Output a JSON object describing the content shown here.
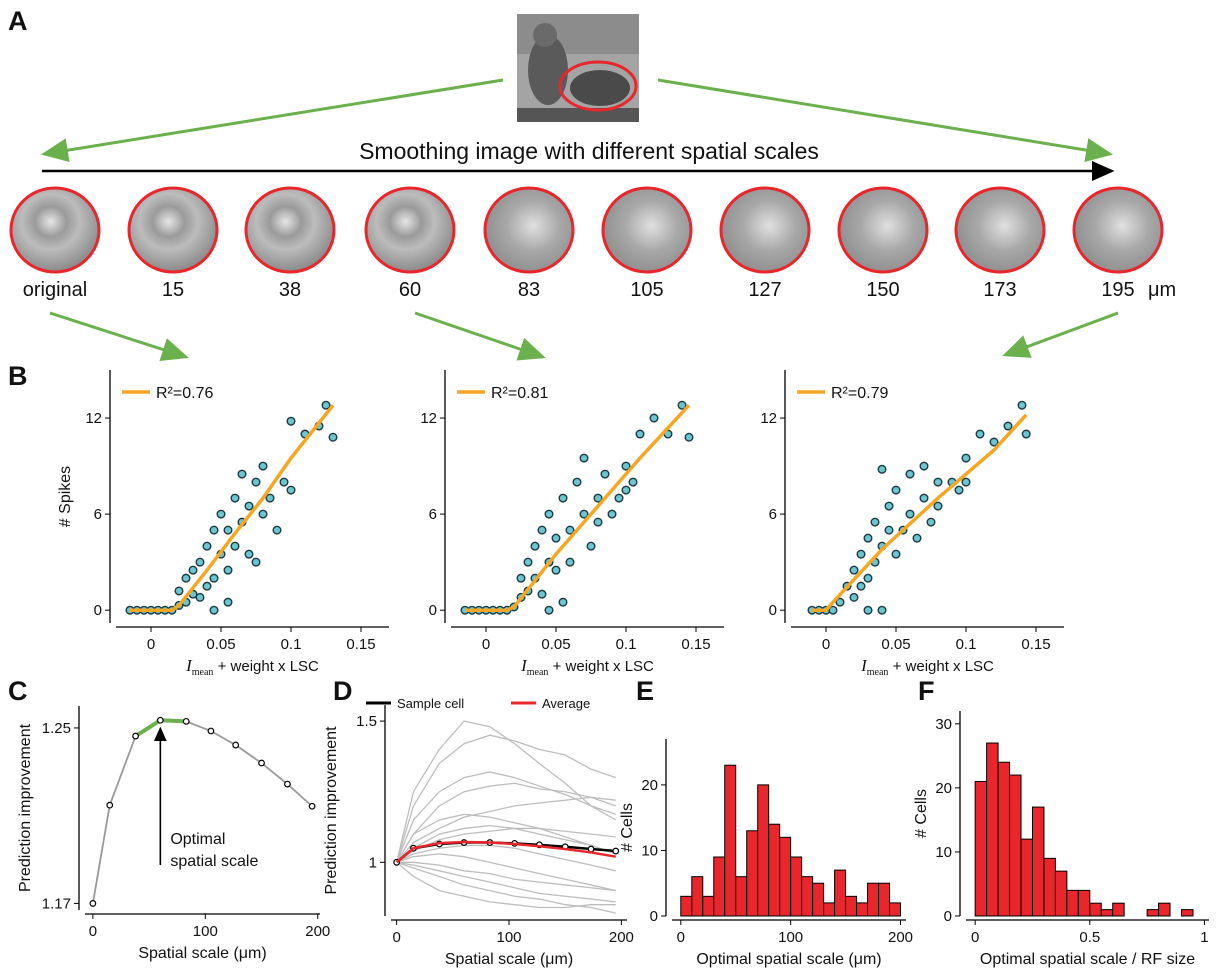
{
  "panel_a": {
    "panel": "A",
    "caption": "Smoothing image with different spatial scales",
    "scales": [
      "original",
      "15",
      "38",
      "60",
      "83",
      "105",
      "127",
      "150",
      "173",
      "195"
    ],
    "unit": "μm"
  },
  "chart_data": [
    {
      "type": "scatter",
      "panel": "B",
      "x": [
        -0.015,
        -0.01,
        -0.005,
        0,
        0.005,
        0.01,
        0.015,
        0.02,
        0.02,
        0.025,
        0.025,
        0.03,
        0.03,
        0.035,
        0.035,
        0.04,
        0.04,
        0.045,
        0.045,
        0.05,
        0.05,
        0.055,
        0.055,
        0.06,
        0.06,
        0.065,
        0.065,
        0.07,
        0.07,
        0.075,
        0.08,
        0.08,
        0.085,
        0.09,
        0.095,
        0.1,
        0.1,
        0.11,
        0.12,
        0.125,
        0.13,
        0.045,
        0.055,
        0.075
      ],
      "values": [
        0,
        0,
        0,
        0,
        0,
        0,
        0,
        0.3,
        1.2,
        2,
        0.5,
        1,
        2.5,
        3,
        0.8,
        4,
        1.5,
        5,
        2,
        3.5,
        6,
        5,
        2.5,
        7,
        4,
        8.5,
        5.5,
        6.5,
        3.5,
        8,
        6,
        9,
        7,
        5,
        8,
        7.5,
        11.8,
        11,
        11.5,
        12.8,
        10.8,
        0,
        0.5,
        3
      ],
      "point_color": "#6cc5d0",
      "fit": {
        "name": "R²=0.76",
        "color": "#f5a623",
        "x": [
          -0.015,
          0.015,
          0.02,
          0.04,
          0.06,
          0.08,
          0.1,
          0.13
        ],
        "values": [
          0,
          0,
          0.3,
          2.5,
          4.8,
          7,
          9.5,
          12.8
        ]
      },
      "xlim": [
        -0.025,
        0.17
      ],
      "ylim": [
        -0.8,
        15
      ],
      "xticks": [
        0,
        0.05,
        0.1,
        0.15
      ],
      "yticks": [
        0,
        6,
        12
      ],
      "xlabel": {
        "symbol": "I",
        "subscript": "mean",
        "text": " + weight x LSC"
      },
      "ylabel": "# Spikes"
    },
    {
      "type": "scatter",
      "x": [
        -0.015,
        -0.01,
        -0.005,
        0,
        0.005,
        0.01,
        0.015,
        0.02,
        0.025,
        0.025,
        0.03,
        0.03,
        0.035,
        0.035,
        0.04,
        0.04,
        0.045,
        0.045,
        0.05,
        0.05,
        0.055,
        0.06,
        0.06,
        0.065,
        0.07,
        0.07,
        0.075,
        0.08,
        0.08,
        0.085,
        0.09,
        0.095,
        0.1,
        0.1,
        0.105,
        0.11,
        0.12,
        0.13,
        0.14,
        0.145,
        0.045,
        0.055
      ],
      "values": [
        0,
        0,
        0,
        0,
        0,
        0,
        0,
        0.2,
        0.8,
        2,
        1.2,
        3,
        2,
        4,
        1,
        5,
        3,
        6,
        2.5,
        4.5,
        7,
        5,
        3,
        8,
        6,
        9.5,
        4,
        7,
        5.5,
        8.5,
        6,
        7,
        9,
        7.5,
        8,
        11,
        12,
        11,
        12.8,
        10.8,
        0,
        0.5
      ],
      "point_color": "#6cc5d0",
      "fit": {
        "name": "R²=0.81",
        "color": "#f5a623",
        "x": [
          -0.015,
          0.015,
          0.02,
          0.05,
          0.08,
          0.11,
          0.145
        ],
        "values": [
          0,
          0,
          0.2,
          3.5,
          6.5,
          9.5,
          12.8
        ]
      },
      "xlim": [
        -0.025,
        0.17
      ],
      "ylim": [
        -0.8,
        15
      ],
      "xticks": [
        0,
        0.05,
        0.1,
        0.15
      ],
      "yticks": [
        0,
        6,
        12
      ],
      "xlabel": {
        "symbol": "I",
        "subscript": "mean",
        "text": " + weight x LSC"
      }
    },
    {
      "type": "scatter",
      "x": [
        -0.01,
        -0.005,
        0,
        0.005,
        0.01,
        0.015,
        0.02,
        0.02,
        0.025,
        0.025,
        0.03,
        0.03,
        0.035,
        0.035,
        0.04,
        0.04,
        0.045,
        0.045,
        0.05,
        0.05,
        0.055,
        0.06,
        0.06,
        0.065,
        0.07,
        0.07,
        0.075,
        0.08,
        0.08,
        0.09,
        0.095,
        0.1,
        0.1,
        0.11,
        0.12,
        0.13,
        0.14,
        0.143,
        0.03,
        0.04
      ],
      "values": [
        0,
        0,
        0,
        0,
        0.5,
        1.5,
        2.5,
        0.8,
        3.5,
        1.5,
        4.5,
        2,
        3,
        5.5,
        8.8,
        4,
        5,
        6.5,
        3.5,
        7.5,
        5,
        6,
        8.5,
        4.5,
        7,
        9,
        5.5,
        8,
        6.5,
        8,
        7.5,
        8,
        9.5,
        11,
        10.5,
        11.5,
        12.8,
        11,
        0,
        0
      ],
      "point_color": "#6cc5d0",
      "fit": {
        "name": "R²=0.79",
        "color": "#f5a623",
        "x": [
          -0.01,
          0,
          0.005,
          0.04,
          0.08,
          0.12,
          0.143
        ],
        "values": [
          0,
          0,
          0.5,
          3.8,
          7,
          10,
          12.2
        ]
      },
      "xlim": [
        -0.025,
        0.17
      ],
      "ylim": [
        -0.8,
        15
      ],
      "xticks": [
        0,
        0.05,
        0.1,
        0.15
      ],
      "yticks": [
        0,
        6,
        12
      ],
      "xlabel": {
        "symbol": "I",
        "subscript": "mean",
        "text": " + weight x LSC"
      }
    },
    {
      "type": "line",
      "panel": "C",
      "x": [
        0,
        15,
        38,
        60,
        83,
        105,
        127,
        150,
        173,
        195
      ],
      "series": [
        {
          "color": "#999999",
          "values": [
            1.17,
            1.2148,
            1.2463,
            1.2535,
            1.253,
            1.2486,
            1.2422,
            1.234,
            1.2244,
            1.2143
          ],
          "markers": true
        }
      ],
      "highlight_color": "#6ab04c",
      "annotation": [
        "Optimal",
        "spatial scale"
      ],
      "xlim": [
        -7,
        202
      ],
      "ylim": [
        1.167,
        1.26
      ],
      "xticks": [
        0,
        100,
        200
      ],
      "yticks": [
        1.17,
        1.25
      ],
      "xlabel": "Spatial scale (μm)",
      "ylabel": "Prediction improvement"
    },
    {
      "type": "line",
      "panel": "D",
      "x": [
        0,
        15,
        38,
        60,
        83,
        105,
        127,
        150,
        173,
        195
      ],
      "background": {
        "color": "#bdbdbd",
        "lines": [
          [
            1,
            1.1,
            1.2,
            1.25,
            1.27,
            1.28,
            1.26,
            1.25,
            1.23,
            1.2
          ],
          [
            1,
            1.2,
            1.35,
            1.42,
            1.45,
            1.43,
            1.4,
            1.38,
            1.33,
            1.3
          ],
          [
            1,
            1.05,
            1.1,
            1.12,
            1.13,
            1.12,
            1.1,
            1.08,
            1.06,
            1.03
          ],
          [
            1,
            0.98,
            0.95,
            0.92,
            0.9,
            0.88,
            0.87,
            0.85,
            0.84,
            0.82
          ],
          [
            1,
            1.02,
            1.03,
            1.02,
            1.0,
            0.98,
            0.96,
            0.94,
            0.92,
            0.9
          ],
          [
            1,
            1.15,
            1.25,
            1.3,
            1.32,
            1.3,
            1.27,
            1.24,
            1.2,
            1.17
          ],
          [
            1,
            1.07,
            1.12,
            1.16,
            1.18,
            1.2,
            1.21,
            1.22,
            1.23,
            1.22
          ],
          [
            1,
            0.95,
            0.9,
            0.88,
            0.86,
            0.85,
            0.84,
            0.84,
            0.85,
            0.85
          ],
          [
            1,
            1.03,
            1.05,
            1.06,
            1.06,
            1.05,
            1.03,
            1.01,
            0.99,
            0.97
          ],
          [
            1,
            1.25,
            1.4,
            1.5,
            1.48,
            1.42,
            1.35,
            1.28,
            1.2,
            1.15
          ],
          [
            1,
            1.04,
            1.08,
            1.1,
            1.11,
            1.12,
            1.12,
            1.11,
            1.1,
            1.09
          ],
          [
            1,
            0.99,
            0.97,
            0.95,
            0.93,
            0.91,
            0.89,
            0.88,
            0.87,
            0.86
          ],
          [
            1,
            1.1,
            1.15,
            1.17,
            1.16,
            1.14,
            1.12,
            1.09,
            1.06,
            1.03
          ],
          [
            1,
            1.0,
            0.99,
            0.97,
            0.96,
            0.94,
            0.93,
            0.92,
            0.91,
            0.9
          ]
        ]
      },
      "series": [
        {
          "name": "Sample cell",
          "color": "#000000",
          "values": [
            1,
            1.05,
            1.065,
            1.07,
            1.07,
            1.067,
            1.062,
            1.055,
            1.047,
            1.04
          ],
          "markers": true
        },
        {
          "name": "Average",
          "color": "#e8262b",
          "values": [
            1,
            1.05,
            1.068,
            1.072,
            1.07,
            1.065,
            1.057,
            1.047,
            1.035,
            1.02
          ],
          "markers": false
        }
      ],
      "xlim": [
        -5,
        205
      ],
      "ylim": [
        0.81,
        1.557
      ],
      "xticks": [
        0,
        100,
        200
      ],
      "yticks": [
        1,
        1.5
      ],
      "xlabel": "Spatial scale (μm)",
      "ylabel": "Prediction improvement"
    },
    {
      "type": "histogram",
      "panel": "E",
      "color": "#e8262b",
      "bins": [
        0,
        10,
        20,
        30,
        40,
        50,
        60,
        70,
        80,
        90,
        100,
        110,
        120,
        130,
        140,
        150,
        160,
        170,
        180,
        190,
        200
      ],
      "values": [
        3,
        6,
        3,
        9,
        23,
        6,
        13,
        20,
        14,
        12,
        9,
        6,
        5,
        2,
        7,
        3,
        2,
        5,
        5,
        2
      ],
      "xlim": [
        -8,
        205
      ],
      "ylim": [
        0,
        27
      ],
      "xticks": [
        0,
        100,
        200
      ],
      "yticks": [
        0,
        10,
        20
      ],
      "xlabel": "Optimal spatial scale (μm)",
      "ylabel": "# Cells"
    },
    {
      "type": "histogram",
      "panel": "F",
      "color": "#e8262b",
      "bins": [
        0,
        0.05,
        0.1,
        0.15,
        0.2,
        0.25,
        0.3,
        0.35,
        0.4,
        0.45,
        0.5,
        0.55,
        0.6,
        0.65,
        0.7,
        0.75,
        0.8,
        0.85,
        0.9,
        0.95
      ],
      "values": [
        21,
        27,
        24,
        22,
        12,
        17,
        9,
        7,
        4,
        4,
        2,
        1,
        2,
        0,
        0,
        1,
        2,
        0,
        1
      ],
      "xlim": [
        -0.04,
        1.02
      ],
      "ylim": [
        0,
        32
      ],
      "xticks": [
        0,
        0.5,
        1
      ],
      "yticks": [
        0,
        10,
        20,
        30
      ],
      "xlabel": "Optimal spatial scale / RF size",
      "ylabel": "# Cells"
    }
  ]
}
